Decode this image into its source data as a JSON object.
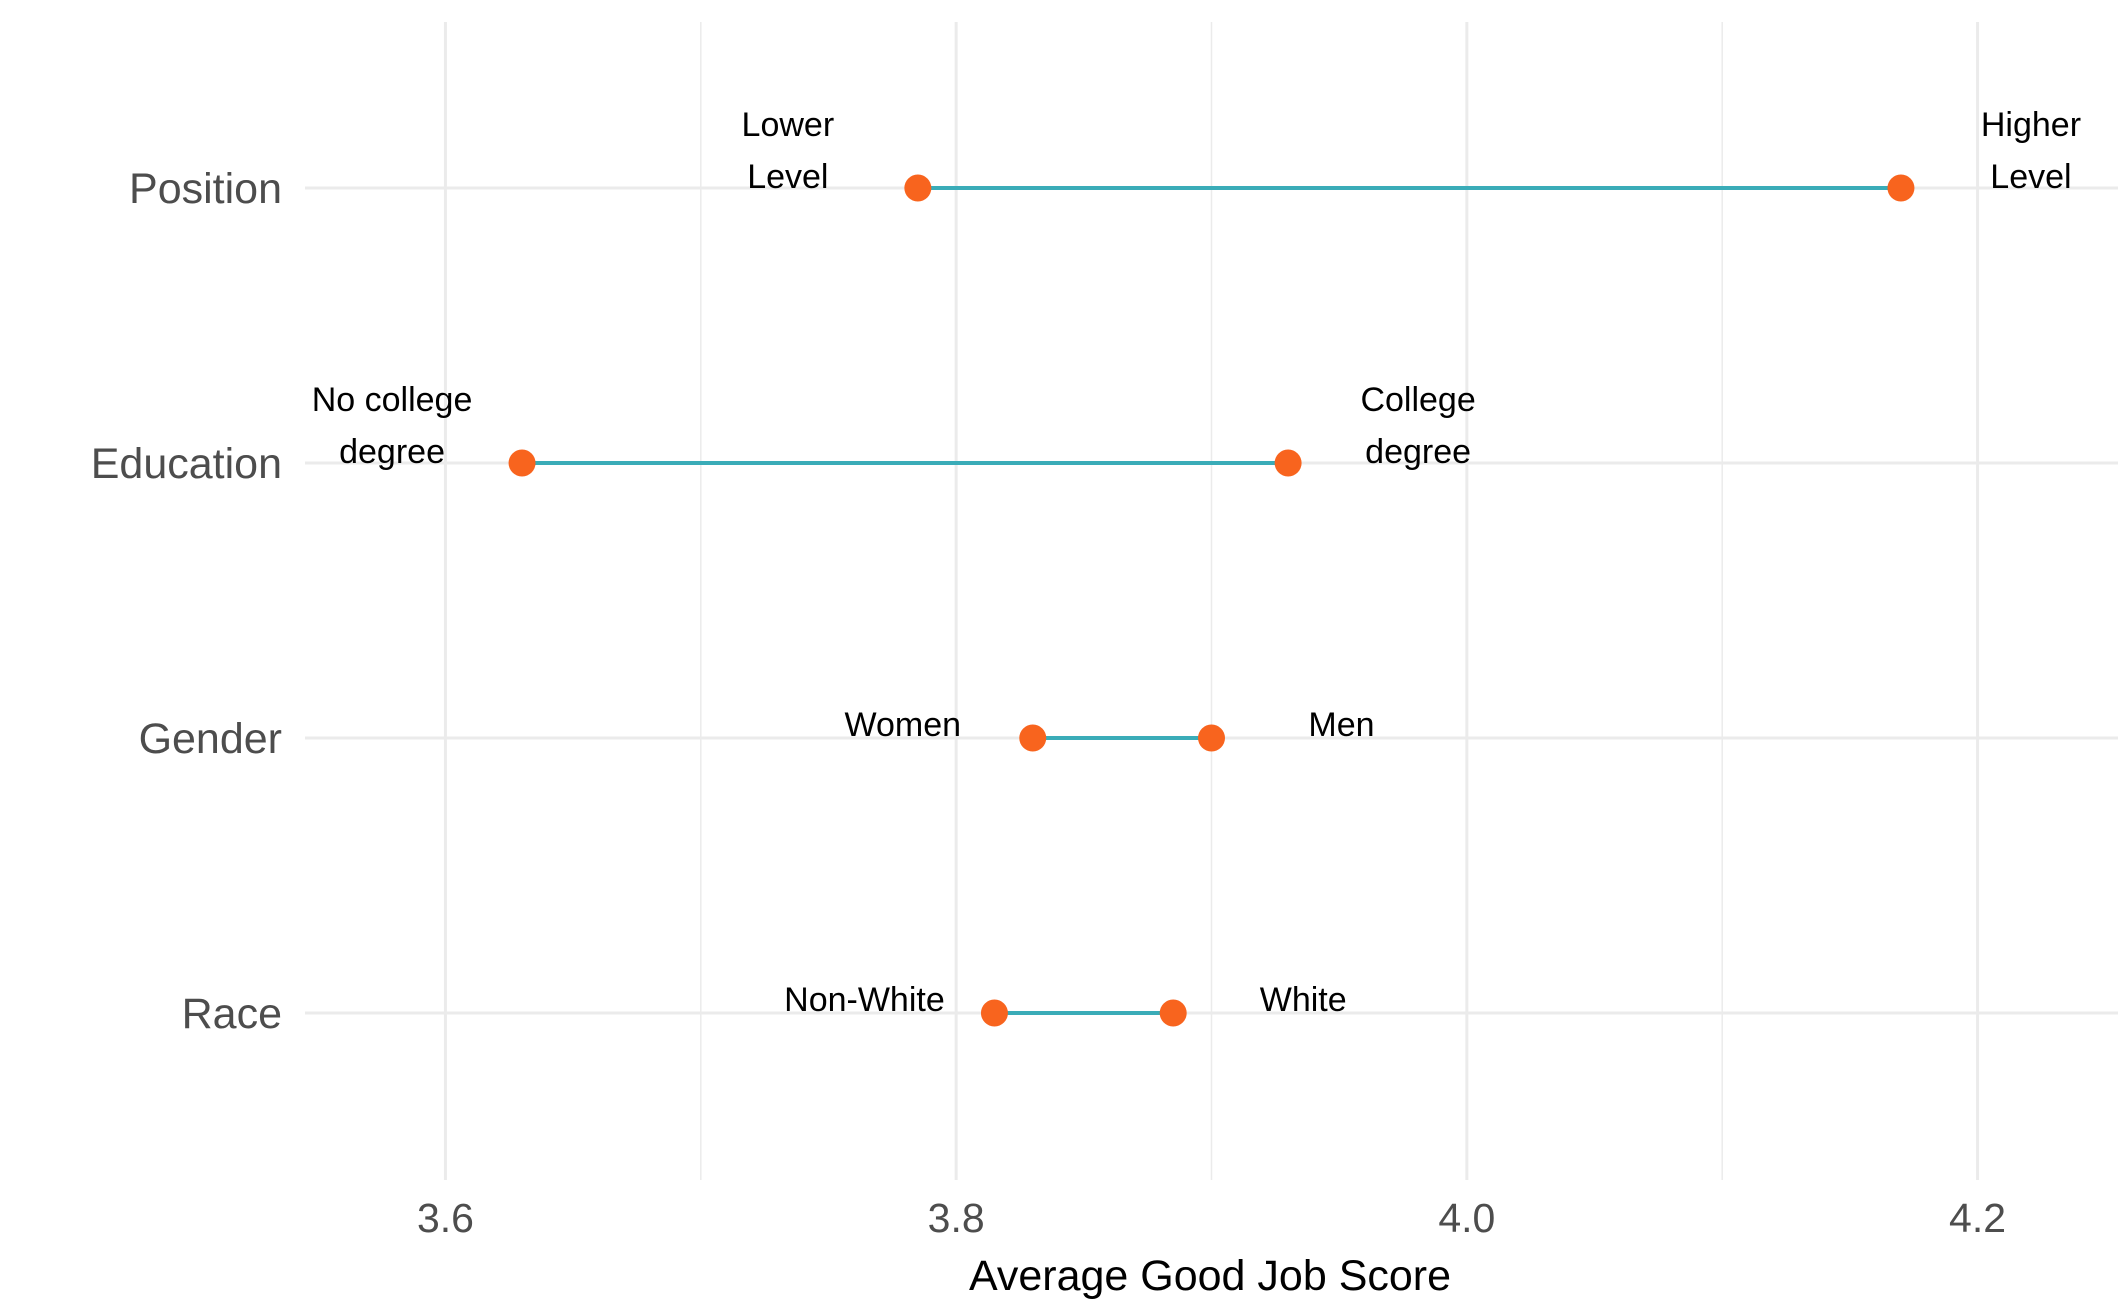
{
  "chart_data": {
    "type": "dumbbell",
    "title": "",
    "xlabel": "Average Good Job Score",
    "ylabel": "",
    "xlim": [
      3.545,
      4.255
    ],
    "xticks": [
      "3.6",
      "3.8",
      "4.0",
      "4.2"
    ],
    "grid": true,
    "legend": "none",
    "colors": {
      "segment": "#3aacb8",
      "point": "#f8641e",
      "grid": "#ebebeb"
    },
    "categories": [
      "Position",
      "Education",
      "Gender",
      "Race"
    ],
    "rows": [
      {
        "category": "Position",
        "low": {
          "label": [
            "Lower",
            "Level"
          ],
          "value": 3.785
        },
        "high": {
          "label": [
            "Higher",
            "Level"
          ],
          "value": 4.17
        }
      },
      {
        "category": "Education",
        "low": {
          "label": [
            "No college",
            "degree"
          ],
          "value": 3.63
        },
        "high": {
          "label": [
            "College",
            "degree"
          ],
          "value": 3.93
        }
      },
      {
        "category": "Gender",
        "low": {
          "label": [
            "Women"
          ],
          "value": 3.83
        },
        "high": {
          "label": [
            "Men"
          ],
          "value": 3.9
        }
      },
      {
        "category": "Race",
        "low": {
          "label": [
            "Non-White"
          ],
          "value": 3.815
        },
        "high": {
          "label": [
            "White"
          ],
          "value": 3.885
        }
      }
    ]
  }
}
